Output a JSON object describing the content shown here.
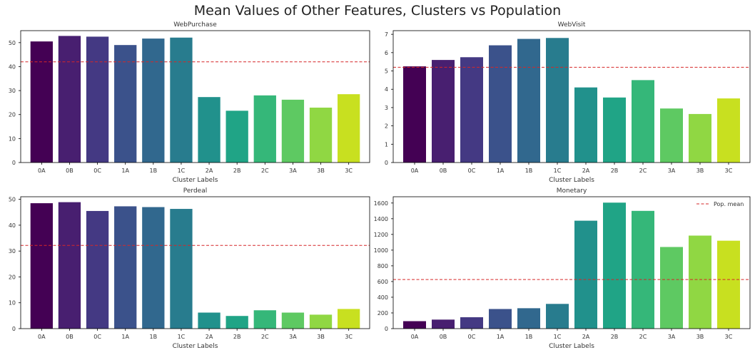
{
  "figure": {
    "title": "Mean Values of Other Features, Clusters vs Population"
  },
  "colors": {
    "bars": [
      "#440154",
      "#481f70",
      "#443983",
      "#3b528b",
      "#31688e",
      "#287c8e",
      "#21918c",
      "#20a486",
      "#35b779",
      "#5ec962",
      "#90d743",
      "#c8e020"
    ],
    "pop_mean_line": "#d62728",
    "axes": "#000000"
  },
  "chart_data": [
    {
      "type": "bar",
      "title": "WebPurchase",
      "xlabel": "Cluster Labels",
      "ylabel": "",
      "categories": [
        "0A",
        "0B",
        "0C",
        "1A",
        "1B",
        "1C",
        "2A",
        "2B",
        "2C",
        "3A",
        "3B",
        "3C"
      ],
      "values": [
        50.5,
        52.8,
        52.5,
        49.0,
        51.7,
        52.1,
        27.3,
        21.6,
        28.0,
        26.2,
        22.9,
        28.5
      ],
      "population_mean": 42.0,
      "ylim": [
        0,
        55
      ],
      "yticks": [
        0,
        10,
        20,
        30,
        40,
        50
      ],
      "legend": false
    },
    {
      "type": "bar",
      "title": "WebVisit",
      "xlabel": "Cluster Labels",
      "ylabel": "",
      "categories": [
        "0A",
        "0B",
        "0C",
        "1A",
        "1B",
        "1C",
        "2A",
        "2B",
        "2C",
        "3A",
        "3B",
        "3C"
      ],
      "values": [
        5.25,
        5.6,
        5.75,
        6.4,
        6.75,
        6.8,
        4.1,
        3.55,
        4.5,
        2.95,
        2.65,
        3.5
      ],
      "population_mean": 5.2,
      "ylim": [
        0,
        7.2
      ],
      "yticks": [
        0,
        1,
        2,
        3,
        4,
        5,
        6,
        7
      ],
      "legend": false
    },
    {
      "type": "bar",
      "title": "Perdeal",
      "xlabel": "Cluster Labels",
      "ylabel": "",
      "categories": [
        "0A",
        "0B",
        "0C",
        "1A",
        "1B",
        "1C",
        "2A",
        "2B",
        "2C",
        "3A",
        "3B",
        "3C"
      ],
      "values": [
        48.5,
        48.9,
        45.5,
        47.3,
        47.0,
        46.3,
        6.2,
        4.9,
        7.1,
        6.2,
        5.4,
        7.6
      ],
      "population_mean": 32.2,
      "ylim": [
        0,
        51
      ],
      "yticks": [
        0,
        10,
        20,
        30,
        40,
        50
      ],
      "legend": false
    },
    {
      "type": "bar",
      "title": "Monetary",
      "xlabel": "Cluster Labels",
      "ylabel": "",
      "categories": [
        "0A",
        "0B",
        "0C",
        "1A",
        "1B",
        "1C",
        "2A",
        "2B",
        "2C",
        "3A",
        "3B",
        "3C"
      ],
      "values": [
        95,
        115,
        145,
        250,
        260,
        315,
        1375,
        1605,
        1500,
        1040,
        1185,
        1120
      ],
      "population_mean": 625,
      "ylim": [
        0,
        1680
      ],
      "yticks": [
        0,
        200,
        400,
        600,
        800,
        1000,
        1200,
        1400,
        1600
      ],
      "legend": true,
      "legend_label": "Pop. mean",
      "legend_position": "top-right"
    }
  ]
}
